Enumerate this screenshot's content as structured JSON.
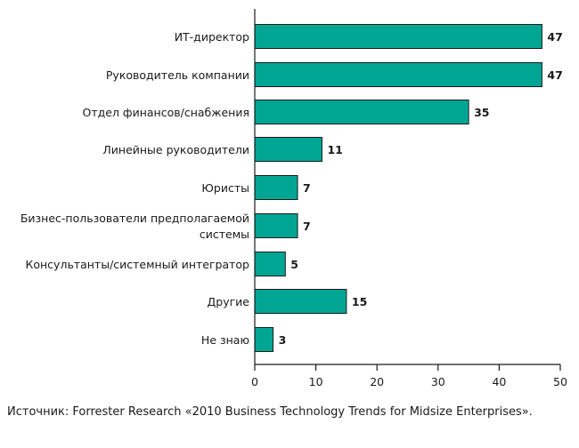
{
  "chart_data": {
    "type": "bar",
    "orientation": "horizontal",
    "categories": [
      [
        "ИТ-директор"
      ],
      [
        "Руководитель компании"
      ],
      [
        "Отдел финансов/снабжения"
      ],
      [
        "Линейные руководители"
      ],
      [
        "Юристы"
      ],
      [
        "Бизнес-пользователи предполагаемой",
        "системы"
      ],
      [
        "Консультанты/системный интегратор"
      ],
      [
        "Другие"
      ],
      [
        "Не знаю"
      ]
    ],
    "values": [
      47,
      47,
      35,
      11,
      7,
      7,
      5,
      15,
      3
    ],
    "xlim": [
      0,
      50
    ],
    "xticks": [
      0,
      10,
      20,
      30,
      40,
      50
    ],
    "bar_color": "#00a693",
    "grid": false
  },
  "source": "Источник: Forrester Research «2010 Business Technology Trends for Midsize Enterprises»."
}
